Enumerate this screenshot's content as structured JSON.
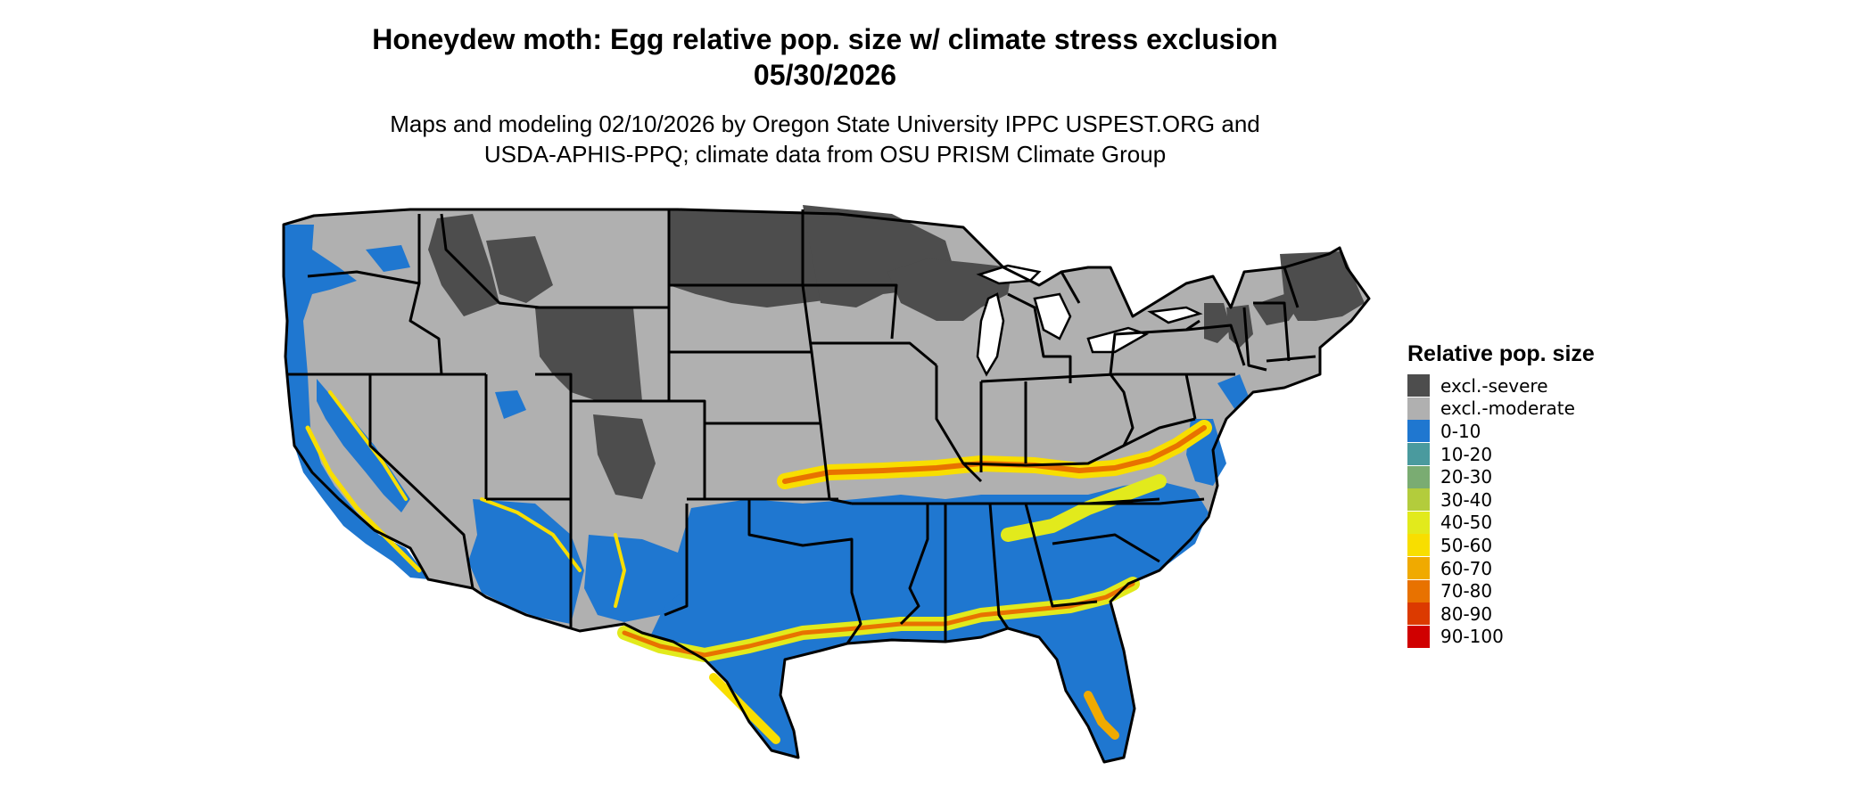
{
  "title": "Honeydew moth: Egg relative pop. size w/ climate stress exclusion",
  "date": "05/30/2026",
  "subtitle_line1": "Maps and modeling 02/10/2026 by Oregon State University IPPC USPEST.ORG and",
  "subtitle_line2": "USDA-APHIS-PPQ; climate data from OSU PRISM Climate Group",
  "legend": {
    "title": "Relative pop. size",
    "items": [
      {
        "label": "excl.-severe",
        "color": "#4d4d4d"
      },
      {
        "label": "excl.-moderate",
        "color": "#b0b0b0"
      },
      {
        "label": "0-10",
        "color": "#1f77d0"
      },
      {
        "label": "10-20",
        "color": "#4a9a9e"
      },
      {
        "label": "20-30",
        "color": "#7aac72"
      },
      {
        "label": "30-40",
        "color": "#b3cc3c"
      },
      {
        "label": "40-50",
        "color": "#e2ea1c"
      },
      {
        "label": "50-60",
        "color": "#f8de00"
      },
      {
        "label": "60-70",
        "color": "#f0aa00"
      },
      {
        "label": "70-80",
        "color": "#e87200"
      },
      {
        "label": "80-90",
        "color": "#dc3a00"
      },
      {
        "label": "90-100",
        "color": "#d00000"
      }
    ]
  }
}
